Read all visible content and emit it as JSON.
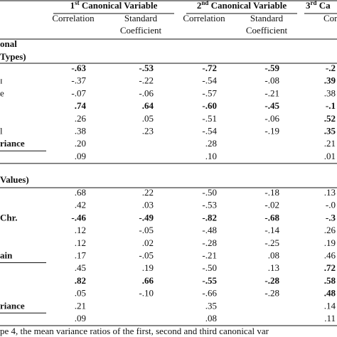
{
  "table": {
    "group_headers": [
      {
        "num": "1",
        "sup": "st",
        "text": " Canonical Variable"
      },
      {
        "num": "2",
        "sup": "nd",
        "text": " Canonical Variable"
      },
      {
        "num": "3",
        "sup": "rd",
        "text": " Ca"
      }
    ],
    "column_headers": [
      [
        "Correlation"
      ],
      [
        "Standard",
        "Coefficient"
      ],
      [
        "Correlation"
      ],
      [
        "Standard",
        "Coefficient"
      ],
      [
        "Correla"
      ]
    ],
    "sections": [
      {
        "label": [
          "onal",
          "Types)"
        ],
        "rows": [
          {
            "label": "",
            "cells": [
              "-.63",
              "-.53",
              "-.72",
              "-.59",
              "-.2"
            ],
            "bold": true
          },
          {
            "label": "ɪ",
            "cells": [
              "-.37",
              "-.22",
              "-.54",
              "-.08",
              ".39"
            ],
            "bold_last": true
          },
          {
            "label": "e",
            "cells": [
              "-.07",
              "-.06",
              "-.57",
              "-.21",
              ".38"
            ]
          },
          {
            "label": "",
            "cells": [
              ".74",
              ".64",
              "-.60",
              "-.45",
              "-.1"
            ],
            "bold": true
          },
          {
            "label": "",
            "cells": [
              ".26",
              ".05",
              "-.51",
              "-.06",
              ".52"
            ],
            "bold_last": true
          },
          {
            "label": "l",
            "cells": [
              ".38",
              ".23",
              "-.54",
              "-.19",
              ".35"
            ],
            "bold_last": true
          },
          {
            "label": "riance",
            "cells": [
              ".20",
              "",
              ".28",
              "",
              ".21"
            ],
            "bold_label": true
          },
          {
            "label": "",
            "cells": [
              ".09",
              "",
              ".10",
              "",
              ".01"
            ]
          }
        ]
      },
      {
        "label": [
          "Values)"
        ],
        "rows": [
          {
            "label": "",
            "cells": [
              ".68",
              ".22",
              "-.50",
              "-.18",
              ".13"
            ]
          },
          {
            "label": "",
            "cells": [
              ".42",
              ".03",
              "-.53",
              "-.02",
              "-.0"
            ]
          },
          {
            "label": "Chr.",
            "cells": [
              "-.46",
              "-.49",
              "-.82",
              "-.68",
              "-.3"
            ],
            "bold": true
          },
          {
            "label": "",
            "cells": [
              ".12",
              "-.05",
              "-.48",
              "-.14",
              ".26"
            ]
          },
          {
            "label": "",
            "cells": [
              ".12",
              ".02",
              "-.28",
              "-.25",
              ".19"
            ]
          },
          {
            "label": "ain",
            "cells": [
              ".17",
              "-.05",
              "-.21",
              ".08",
              ".46"
            ],
            "bold_label": true
          },
          {
            "label": "",
            "cells": [
              ".45",
              ".19",
              "-.50",
              ".13",
              ".72"
            ],
            "bold_last": true
          },
          {
            "label": "",
            "cells": [
              ".82",
              ".66",
              "-.55",
              "-.28",
              ".58"
            ],
            "bold": true
          },
          {
            "label": "",
            "cells": [
              ".05",
              "-.10",
              "-.66",
              "-.28",
              ".48"
            ],
            "bold_last": true
          },
          {
            "label": "riance",
            "cells": [
              ".21",
              "",
              ".35",
              "",
              ".14"
            ],
            "bold_label": true
          },
          {
            "label": "",
            "cells": [
              ".09",
              "",
              ".08",
              "",
              ".11"
            ]
          }
        ]
      }
    ],
    "caption": "pe 4, the mean variance ratios of the first, second and third canonical var"
  }
}
